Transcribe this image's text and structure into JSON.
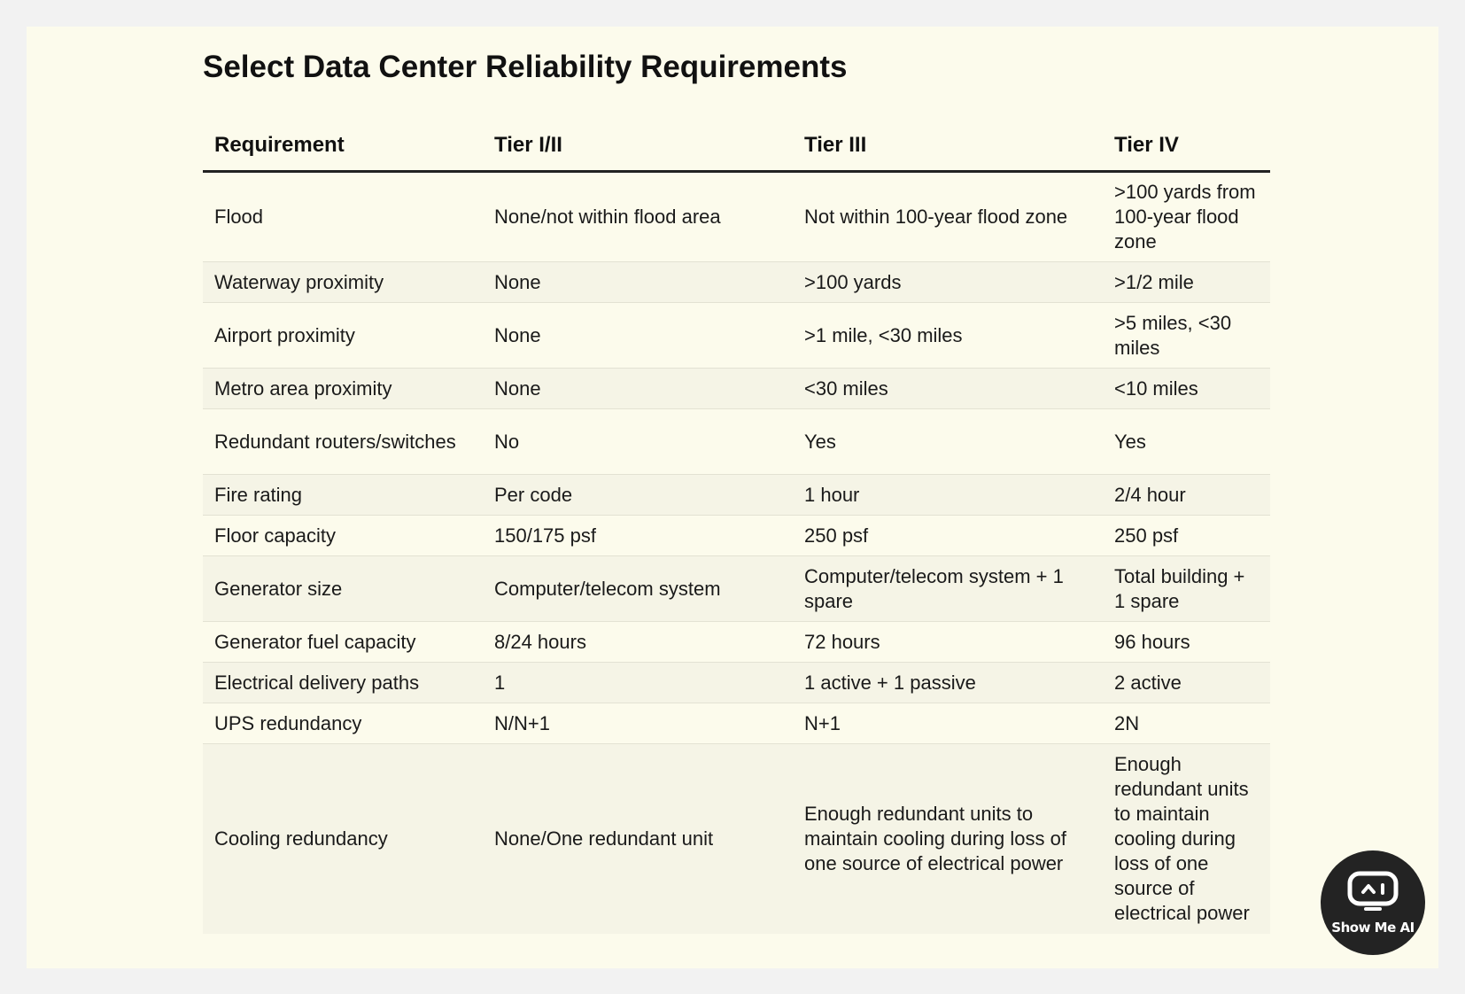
{
  "title": "Select Data Center Reliability Requirements",
  "table": {
    "headers": [
      "Requirement",
      "Tier I/II",
      "Tier III",
      "Tier IV"
    ],
    "rows": [
      [
        "Flood",
        "None/not within flood area",
        "Not within 100-year flood zone",
        ">100 yards from 100-year flood zone"
      ],
      [
        "Waterway proximity",
        "None",
        ">100 yards",
        ">1/2 mile"
      ],
      [
        "Airport proximity",
        "None",
        ">1 mile, <30 miles",
        ">5 miles, <30 miles"
      ],
      [
        "Metro area proximity",
        "None",
        "<30 miles",
        "<10 miles"
      ],
      [
        "Redundant routers/switches",
        "No",
        "Yes",
        "Yes"
      ],
      [
        "Fire rating",
        "Per code",
        "1 hour",
        "2/4 hour"
      ],
      [
        "Floor capacity",
        "150/175 psf",
        "250 psf",
        "250 psf"
      ],
      [
        "Generator size",
        "Computer/telecom system",
        "Computer/telecom system + 1 spare",
        "Total building + 1 spare"
      ],
      [
        "Generator fuel capacity",
        "8/24 hours",
        "72 hours",
        "96 hours"
      ],
      [
        "Electrical delivery paths",
        "1",
        "1 active + 1 passive",
        "2 active"
      ],
      [
        "UPS redundancy",
        "N/N+1",
        "N+1",
        "2N"
      ],
      [
        "Cooling redundancy",
        "None/One redundant unit",
        "Enough redundant units to maintain cooling during loss of one source of electrical power",
        "Enough redundant units to maintain cooling during loss of one source of electrical power"
      ]
    ]
  },
  "logo": {
    "text": "Show Me AI",
    "icon": "robot-face-icon"
  },
  "colors": {
    "page_background": "#f2f2f2",
    "panel_background": "#fcfbec",
    "stripe_background": "#f5f4e6",
    "header_rule": "#222222",
    "logo_background": "#232323",
    "logo_accent": "#2ec4d6"
  }
}
